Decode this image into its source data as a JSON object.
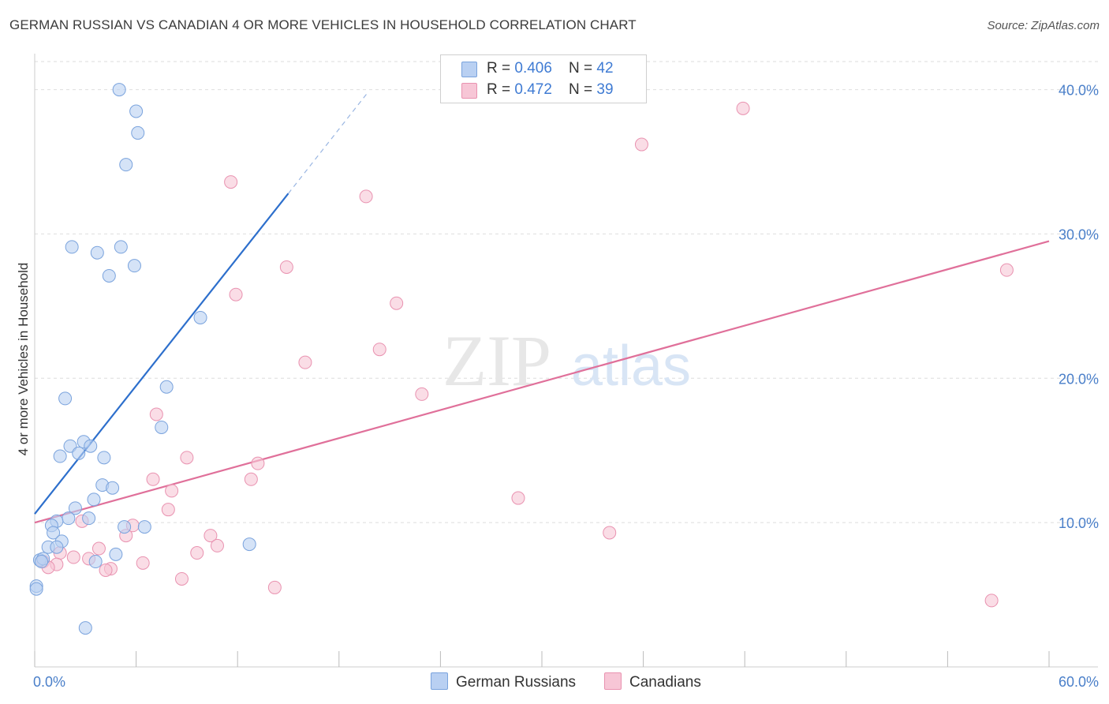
{
  "title": "GERMAN RUSSIAN VS CANADIAN 4 OR MORE VEHICLES IN HOUSEHOLD CORRELATION CHART",
  "source": "Source: ZipAtlas.com",
  "watermark": {
    "zip": "ZIP",
    "atlas": "atlas"
  },
  "colors": {
    "blue_fill": "#b9d0f2",
    "blue_stroke": "#7aa3dd",
    "blue_line": "#2d6fcc",
    "pink_fill": "#f7c6d6",
    "pink_stroke": "#e992b0",
    "pink_line": "#e0709a",
    "tick_text": "#4a7fc9",
    "grid": "#dedede"
  },
  "legend": {
    "rows": [
      {
        "r_label": "R = ",
        "r_value": "0.406",
        "n_label": "N = ",
        "n_value": "42"
      },
      {
        "r_label": "R = ",
        "r_value": "0.472",
        "n_label": "N = ",
        "n_value": "39"
      }
    ]
  },
  "bottom_legend": [
    {
      "label": "German Russians"
    },
    {
      "label": "Canadians"
    }
  ],
  "chart_data": {
    "type": "scatter",
    "title": "GERMAN RUSSIAN VS CANADIAN 4 OR MORE VEHICLES IN HOUSEHOLD CORRELATION CHART",
    "xlabel": "",
    "ylabel": "4 or more Vehicles in Household",
    "xlim": [
      0,
      60
    ],
    "ylim": [
      0,
      42
    ],
    "x_tick_labels": [
      {
        "value": 0,
        "label": "0.0%"
      },
      {
        "value": 60,
        "label": "60.0%"
      }
    ],
    "x_minor_ticks": [
      0,
      6,
      12,
      18,
      24,
      30,
      36,
      42,
      48,
      54,
      60
    ],
    "y_ticks": [
      {
        "value": 10,
        "label": "10.0%"
      },
      {
        "value": 20,
        "label": "20.0%"
      },
      {
        "value": 30,
        "label": "30.0%"
      },
      {
        "value": 40,
        "label": "40.0%"
      }
    ],
    "series": [
      {
        "name": "German Russians",
        "r": 0.406,
        "n": 42,
        "trend": {
          "x0": 0,
          "y0": 10.6,
          "x1": 15.0,
          "y1": 32.8,
          "dash_to_x": 19.7,
          "dash_to_y": 39.8
        },
        "points": [
          [
            5.0,
            40.0
          ],
          [
            6.0,
            38.5
          ],
          [
            6.1,
            37.0
          ],
          [
            5.4,
            34.8
          ],
          [
            2.2,
            29.1
          ],
          [
            3.7,
            28.7
          ],
          [
            5.1,
            29.1
          ],
          [
            4.4,
            27.1
          ],
          [
            5.9,
            27.8
          ],
          [
            9.8,
            24.2
          ],
          [
            7.8,
            19.4
          ],
          [
            1.8,
            18.6
          ],
          [
            7.5,
            16.6
          ],
          [
            2.1,
            15.3
          ],
          [
            2.9,
            15.6
          ],
          [
            3.3,
            15.3
          ],
          [
            1.5,
            14.6
          ],
          [
            2.6,
            14.8
          ],
          [
            4.1,
            14.5
          ],
          [
            4.0,
            12.6
          ],
          [
            4.6,
            12.4
          ],
          [
            3.5,
            11.6
          ],
          [
            2.4,
            11.0
          ],
          [
            2.0,
            10.3
          ],
          [
            3.2,
            10.3
          ],
          [
            1.3,
            10.1
          ],
          [
            1.0,
            9.8
          ],
          [
            5.3,
            9.7
          ],
          [
            6.5,
            9.7
          ],
          [
            1.1,
            9.3
          ],
          [
            1.6,
            8.7
          ],
          [
            12.7,
            8.5
          ],
          [
            0.8,
            8.3
          ],
          [
            1.3,
            8.3
          ],
          [
            4.8,
            7.8
          ],
          [
            0.3,
            7.4
          ],
          [
            0.5,
            7.5
          ],
          [
            3.6,
            7.3
          ],
          [
            0.4,
            7.3
          ],
          [
            0.1,
            5.6
          ],
          [
            3.0,
            2.7
          ],
          [
            0.1,
            5.4
          ]
        ]
      },
      {
        "name": "Canadians",
        "r": 0.472,
        "n": 39,
        "trend": {
          "x0": 0,
          "y0": 10.0,
          "x1": 60,
          "y1": 29.5
        },
        "points": [
          [
            41.9,
            38.7
          ],
          [
            35.9,
            36.2
          ],
          [
            11.6,
            33.6
          ],
          [
            19.6,
            32.6
          ],
          [
            14.9,
            27.7
          ],
          [
            57.5,
            27.5
          ],
          [
            11.9,
            25.8
          ],
          [
            21.4,
            25.2
          ],
          [
            16.0,
            21.1
          ],
          [
            20.4,
            22.0
          ],
          [
            22.9,
            18.9
          ],
          [
            7.2,
            17.5
          ],
          [
            9.0,
            14.5
          ],
          [
            13.2,
            14.1
          ],
          [
            7.0,
            13.0
          ],
          [
            12.8,
            13.0
          ],
          [
            8.1,
            12.2
          ],
          [
            28.6,
            11.7
          ],
          [
            7.9,
            10.9
          ],
          [
            2.8,
            10.1
          ],
          [
            5.8,
            9.8
          ],
          [
            5.4,
            9.1
          ],
          [
            34.0,
            9.3
          ],
          [
            10.4,
            9.1
          ],
          [
            10.8,
            8.4
          ],
          [
            3.8,
            8.2
          ],
          [
            1.5,
            7.9
          ],
          [
            9.6,
            7.9
          ],
          [
            2.3,
            7.6
          ],
          [
            3.2,
            7.5
          ],
          [
            0.5,
            7.3
          ],
          [
            1.3,
            7.1
          ],
          [
            6.4,
            7.2
          ],
          [
            0.8,
            6.9
          ],
          [
            4.5,
            6.8
          ],
          [
            4.2,
            6.7
          ],
          [
            8.7,
            6.1
          ],
          [
            14.2,
            5.5
          ],
          [
            56.6,
            4.6
          ]
        ]
      }
    ]
  }
}
